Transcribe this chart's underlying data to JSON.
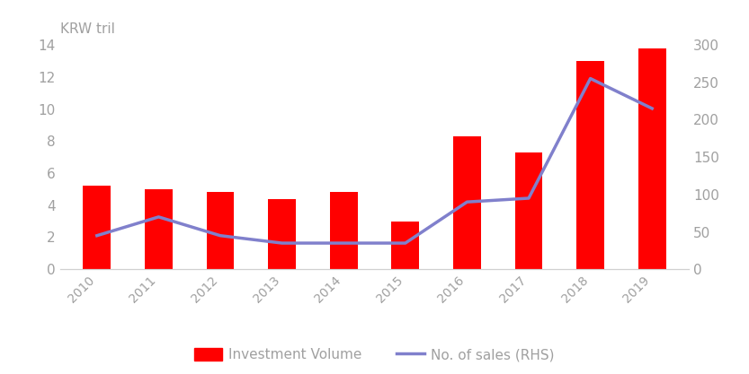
{
  "years": [
    2010,
    2011,
    2012,
    2013,
    2014,
    2015,
    2016,
    2017,
    2018,
    2019
  ],
  "investment_volume": [
    5.2,
    5.0,
    4.8,
    4.4,
    4.8,
    3.0,
    8.3,
    7.3,
    13.0,
    13.8
  ],
  "num_sales": [
    45,
    70,
    45,
    35,
    35,
    35,
    90,
    95,
    255,
    215
  ],
  "bar_color": "#FF0000",
  "line_color": "#8080CC",
  "ylim_left": [
    0,
    14
  ],
  "ylim_right": [
    0,
    300
  ],
  "yticks_left": [
    0,
    2,
    4,
    6,
    8,
    10,
    12,
    14
  ],
  "yticks_right": [
    0,
    50,
    100,
    150,
    200,
    250,
    300
  ],
  "ylabel_left": "KRW tril",
  "legend_bar_label": "Investment Volume",
  "legend_line_label": "No. of sales (RHS)",
  "background_color": "#FFFFFF",
  "tick_label_color": "#A0A0A0",
  "axis_color": "#D0D0D0",
  "figsize": [
    8.33,
    4.17
  ],
  "dpi": 100
}
